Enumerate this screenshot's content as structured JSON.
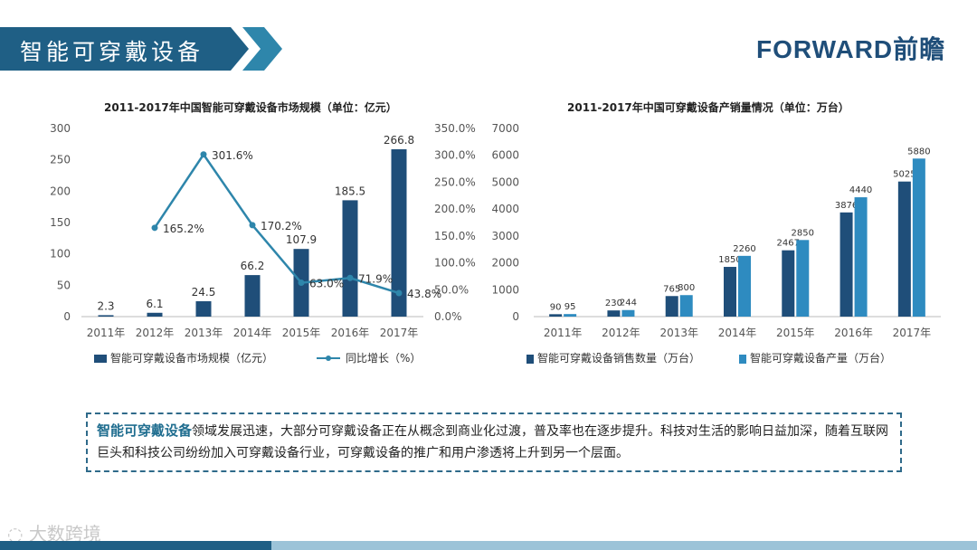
{
  "header": {
    "title": "智能可穿戴设备",
    "logo_text": "FORWARD前瞻"
  },
  "colors": {
    "banner": "#1f5f85",
    "bar_dark": "#1f4e79",
    "bar_light": "#2e8bc0",
    "line": "#2e86ab",
    "highlight": "#1f6d8f"
  },
  "summary": {
    "highlight": "智能可穿戴设备",
    "text": "领域发展迅速，大部分可穿戴设备正在从概念到商业化过渡，普及率也在逐步提升。科技对生活的影响日益加深，随着互联网巨头和科技公司纷纷加入可穿戴设备行业，可穿戴设备的推广和用户渗透将上升到另一个层面。"
  },
  "footer": {
    "brand": "大数跨境"
  },
  "chart_data": [
    {
      "type": "bar",
      "title": "2011-2017年中国智能可穿戴设备市场规模（单位：亿元）",
      "categories": [
        "2011年",
        "2012年",
        "2013年",
        "2014年",
        "2015年",
        "2016年",
        "2017年"
      ],
      "series": [
        {
          "name": "智能可穿戴设备市场规模（亿元）",
          "type": "bar",
          "axis": "left",
          "values": [
            2.3,
            6.1,
            24.5,
            66.2,
            107.9,
            185.5,
            266.8
          ],
          "labels": [
            "2.3",
            "6.1",
            "24.5",
            "66.2",
            "107.9",
            "185.5",
            "266.8"
          ]
        },
        {
          "name": "同比增长（%）",
          "type": "line",
          "axis": "right",
          "values": [
            null,
            165.2,
            301.6,
            170.2,
            63.0,
            71.9,
            43.8
          ],
          "labels": [
            "",
            "165.2%",
            "301.6%",
            "170.2%",
            "63.0%",
            "71.9%",
            "43.8%"
          ]
        }
      ],
      "ylim": [
        0,
        300
      ],
      "yticks": [
        "0",
        "50",
        "100",
        "150",
        "200",
        "250",
        "300"
      ],
      "y2lim": [
        0,
        350
      ],
      "y2ticks": [
        "0.0%",
        "50.0%",
        "100.0%",
        "150.0%",
        "200.0%",
        "250.0%",
        "300.0%",
        "350.0%"
      ],
      "legend": "bottom"
    },
    {
      "type": "bar",
      "title": "2011-2017年中国可穿戴设备产销量情况（单位：万台）",
      "categories": [
        "2011年",
        "2012年",
        "2013年",
        "2014年",
        "2015年",
        "2016年",
        "2017年"
      ],
      "series": [
        {
          "name": "智能可穿戴设备销售数量（万台）",
          "values": [
            90,
            230,
            765,
            1850,
            2467,
            3876,
            5025
          ]
        },
        {
          "name": "智能可穿戴设备产量（万台）",
          "values": [
            95,
            244,
            800,
            2260,
            2850,
            4440,
            5880
          ]
        }
      ],
      "ylim": [
        0,
        7000
      ],
      "yticks": [
        "0",
        "1000",
        "2000",
        "3000",
        "4000",
        "5000",
        "6000",
        "7000"
      ],
      "legend": "bottom"
    }
  ]
}
